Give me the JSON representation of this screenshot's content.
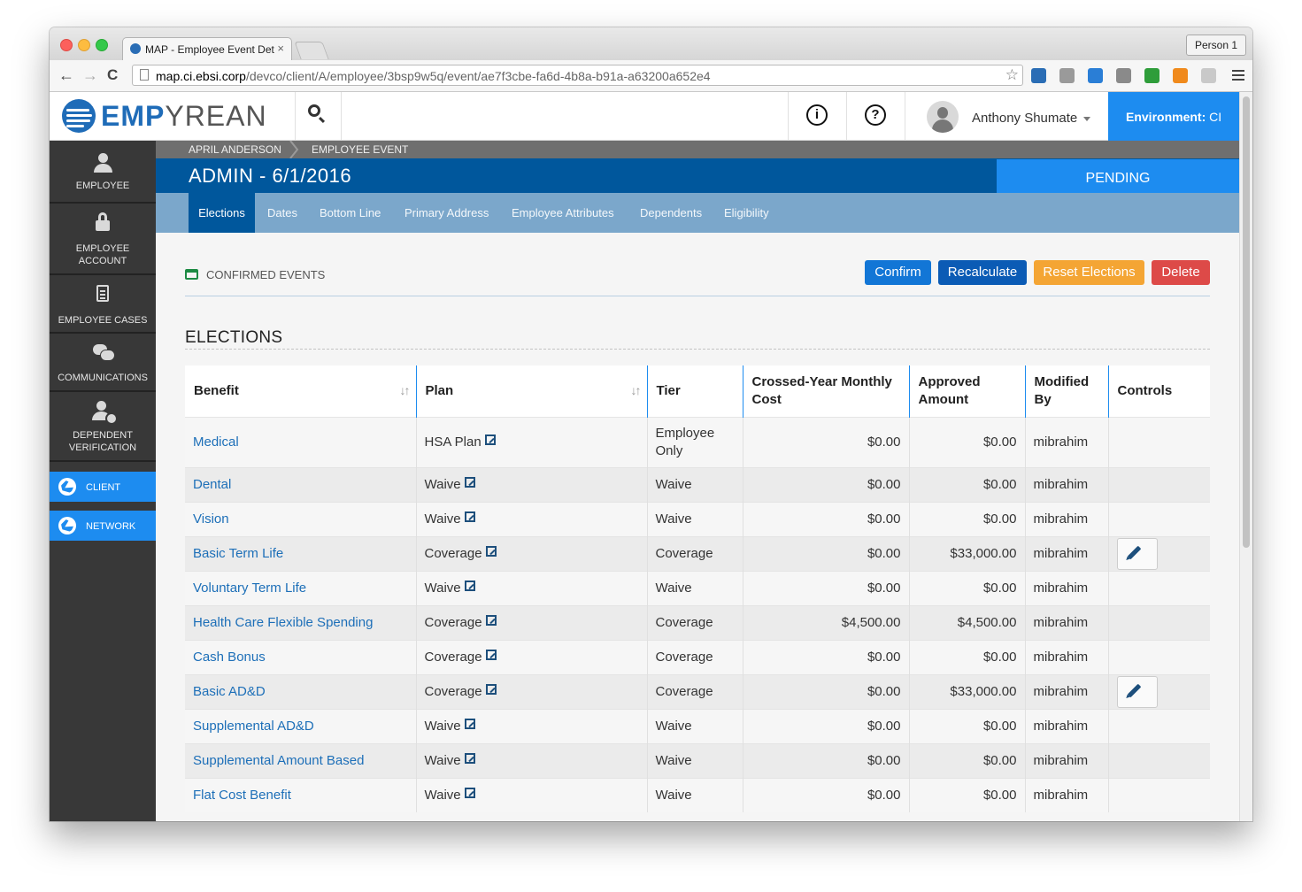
{
  "browser": {
    "tab_title": "MAP - Employee Event Det",
    "tab_close": "×",
    "profile_button": "Person 1",
    "url_host": "map.ci.ebsi.corp",
    "url_path": "/devco/client/A/employee/3bsp9w5q/event/ae7f3cbe-fa6d-4b8a-b91a-a63200a652e4",
    "back_glyph": "←",
    "forward_glyph": "→",
    "reload_glyph": "C",
    "star_glyph": "☆",
    "extensions": [
      {
        "name": "screen-capture-icon",
        "color": "#2a6db5"
      },
      {
        "name": "readability-icon",
        "color": "#9a9a9a"
      },
      {
        "name": "task-check-icon",
        "color": "#2a7ed6"
      },
      {
        "name": "camera-icon",
        "color": "#8a8a8a"
      },
      {
        "name": "download-arrow-icon",
        "color": "#2e9d3a"
      },
      {
        "name": "chart-extension-icon",
        "color": "#f08a1c"
      },
      {
        "name": "grammar-g-icon",
        "color": "#c9c9c9"
      }
    ]
  },
  "header": {
    "logo_emp": "EMP",
    "logo_rest": "YREAN",
    "info_glyph": "i",
    "help_glyph": "?",
    "user_name": "Anthony Shumate",
    "env_label": "Environment:",
    "env_value": "CI"
  },
  "sidebar": {
    "items": [
      {
        "label": "EMPLOYEE"
      },
      {
        "label": "EMPLOYEE ACCOUNT"
      },
      {
        "label": "EMPLOYEE CASES"
      },
      {
        "label": "COMMUNICATIONS"
      },
      {
        "label": "DEPENDENT VERIFICATION"
      }
    ],
    "client_label": "CLIENT",
    "network_label": "NETWORK"
  },
  "breadcrumb": {
    "first": "APRIL ANDERSON",
    "second": "EMPLOYEE EVENT"
  },
  "page": {
    "title": "ADMIN - 6/1/2016",
    "status": "PENDING"
  },
  "tabs": [
    "Elections",
    "Dates",
    "Bottom Line",
    "Primary Address",
    "Employee Attributes",
    "Dependents",
    "Eligibility"
  ],
  "actions": {
    "section_label": "CONFIRMED EVENTS",
    "confirm": "Confirm",
    "recalculate": "Recalculate",
    "reset": "Reset Elections",
    "delete": "Delete",
    "colors": {
      "confirm": "#1276d6",
      "recalculate": "#0b5bb5",
      "reset": "#f4a534",
      "delete": "#dd4a48"
    }
  },
  "elections": {
    "heading": "ELECTIONS",
    "columns": [
      "Benefit",
      "Plan",
      "Tier",
      "Crossed-Year Monthly Cost",
      "Approved Amount",
      "Modified By",
      "Controls"
    ],
    "sort_glyph": "↓↑",
    "rows": [
      {
        "benefit": "Medical",
        "plan": "HSA Plan",
        "tier": "Employee Only",
        "cost": "$0.00",
        "amount": "$0.00",
        "by": "mibrahim",
        "edit": false
      },
      {
        "benefit": "Dental",
        "plan": "Waive",
        "tier": "Waive",
        "cost": "$0.00",
        "amount": "$0.00",
        "by": "mibrahim",
        "edit": false
      },
      {
        "benefit": "Vision",
        "plan": "Waive",
        "tier": "Waive",
        "cost": "$0.00",
        "amount": "$0.00",
        "by": "mibrahim",
        "edit": false
      },
      {
        "benefit": "Basic Term Life",
        "plan": "Coverage",
        "tier": "Coverage",
        "cost": "$0.00",
        "amount": "$33,000.00",
        "by": "mibrahim",
        "edit": true
      },
      {
        "benefit": "Voluntary Term Life",
        "plan": "Waive",
        "tier": "Waive",
        "cost": "$0.00",
        "amount": "$0.00",
        "by": "mibrahim",
        "edit": false
      },
      {
        "benefit": "Health Care Flexible Spending",
        "plan": "Coverage",
        "tier": "Coverage",
        "cost": "$4,500.00",
        "amount": "$4,500.00",
        "by": "mibrahim",
        "edit": false
      },
      {
        "benefit": "Cash Bonus",
        "plan": "Coverage",
        "tier": "Coverage",
        "cost": "$0.00",
        "amount": "$0.00",
        "by": "mibrahim",
        "edit": false
      },
      {
        "benefit": "Basic AD&D",
        "plan": "Coverage",
        "tier": "Coverage",
        "cost": "$0.00",
        "amount": "$33,000.00",
        "by": "mibrahim",
        "edit": true
      },
      {
        "benefit": "Supplemental AD&D",
        "plan": "Waive",
        "tier": "Waive",
        "cost": "$0.00",
        "amount": "$0.00",
        "by": "mibrahim",
        "edit": false
      },
      {
        "benefit": "Supplemental Amount Based",
        "plan": "Waive",
        "tier": "Waive",
        "cost": "$0.00",
        "amount": "$0.00",
        "by": "mibrahim",
        "edit": false
      },
      {
        "benefit": "Flat Cost Benefit",
        "plan": "Waive",
        "tier": "Waive",
        "cost": "$0.00",
        "amount": "$0.00",
        "by": "mibrahim",
        "edit": false
      }
    ]
  }
}
